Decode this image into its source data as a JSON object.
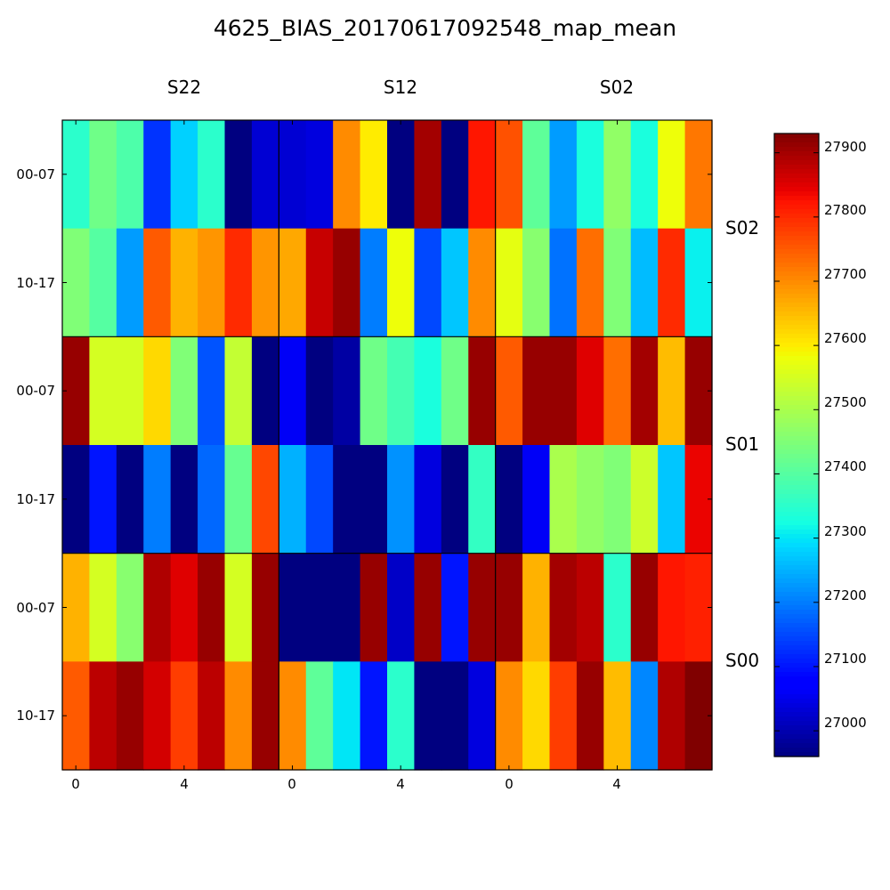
{
  "chart_data": {
    "type": "heatmap",
    "title": "4625_BIAS_20170617092548_map_mean",
    "column_groups": [
      "S22",
      "S12",
      "S02"
    ],
    "row_groups": [
      "S02",
      "S01",
      "S00"
    ],
    "row_labels": [
      "00-07",
      "10-17",
      "00-07",
      "10-17",
      "00-07",
      "10-17"
    ],
    "x_tick_labels": [
      "0",
      "4"
    ],
    "colorbar": {
      "vmin": 26960,
      "vmax": 27930,
      "ticks": [
        "27000",
        "27100",
        "27200",
        "27300",
        "27400",
        "27500",
        "27600",
        "27700",
        "27800",
        "27900"
      ],
      "colormap": "jet"
    },
    "values": [
      [
        27350,
        27430,
        27390,
        27130,
        27280,
        27350,
        26960,
        27030,
        27030,
        27040,
        27700,
        27600,
        26960,
        27900,
        26960,
        27820,
        27760,
        27410,
        27230,
        27330,
        27470,
        27330,
        27580,
        27720
      ],
      [
        27450,
        27400,
        27230,
        27750,
        27660,
        27690,
        27800,
        27690,
        27670,
        27870,
        27910,
        27200,
        27580,
        27150,
        27270,
        27700,
        27570,
        27460,
        27190,
        27730,
        27450,
        27260,
        27800,
        27310
      ],
      [
        27910,
        27550,
        27550,
        27620,
        27450,
        27160,
        27530,
        26960,
        27060,
        26960,
        26990,
        27430,
        27380,
        27330,
        27430,
        27910,
        27750,
        27910,
        27910,
        27850,
        27730,
        27900,
        27650,
        27910
      ],
      [
        26960,
        27100,
        26960,
        27200,
        26960,
        27180,
        27420,
        27770,
        27250,
        27150,
        26960,
        26960,
        27220,
        27040,
        26960,
        27360,
        26960,
        27060,
        27500,
        27470,
        27450,
        27540,
        27270,
        27840
      ],
      [
        27660,
        27550,
        27460,
        27890,
        27850,
        27910,
        27550,
        27910,
        26960,
        26960,
        26960,
        27910,
        27020,
        27910,
        27100,
        27910,
        27910,
        27660,
        27900,
        27880,
        27350,
        27910,
        27820,
        27810
      ],
      [
        27750,
        27880,
        27910,
        27860,
        27780,
        27880,
        27700,
        27910,
        27700,
        27410,
        27300,
        27100,
        27350,
        26960,
        26960,
        27040,
        27700,
        27620,
        27780,
        27910,
        27650,
        27210,
        27890,
        27930
      ]
    ]
  }
}
